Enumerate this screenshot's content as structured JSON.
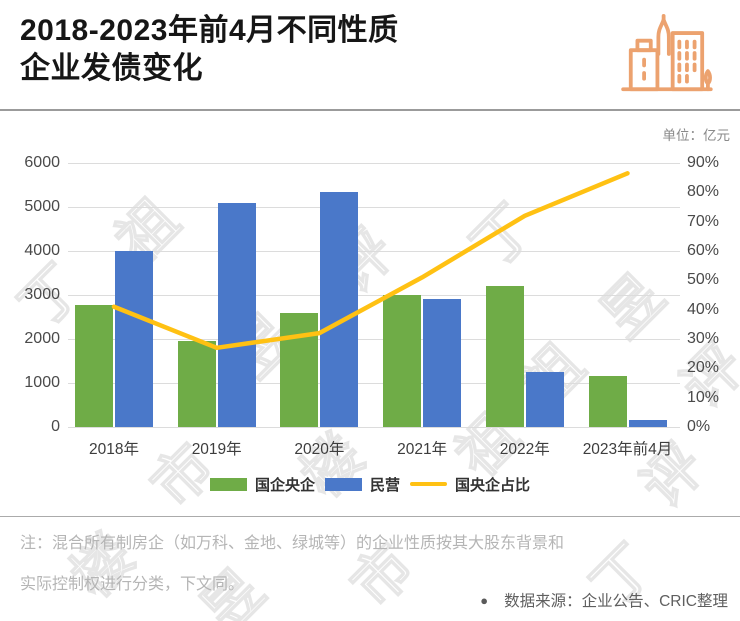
{
  "header": {
    "title_line1": "2018-2023年前4月不同性质",
    "title_line2": "企业发债变化",
    "icon_color": "#ECA26F"
  },
  "unit_label": "单位：亿元",
  "chart_data": {
    "type": "bar",
    "combo": "grouped bars + line on secondary percent axis",
    "categories": [
      "2018年",
      "2019年",
      "2020年",
      "2021年",
      "2022年",
      "2023年前4月"
    ],
    "series": [
      {
        "name": "国企央企",
        "kind": "bar",
        "axis": "left",
        "color": "#6FAC47",
        "values": [
          2780,
          1950,
          2600,
          3000,
          3200,
          1150
        ]
      },
      {
        "name": "民营",
        "kind": "bar",
        "axis": "left",
        "color": "#4A78C9",
        "values": [
          4000,
          5100,
          5330,
          2900,
          1250,
          150
        ]
      },
      {
        "name": "国央企占比",
        "kind": "line",
        "axis": "right",
        "color": "#FFC113",
        "values": [
          41,
          27,
          32,
          51,
          72,
          86.5
        ]
      }
    ],
    "left_axis": {
      "min": 0,
      "max": 6000,
      "step": 1000,
      "ticks": [
        "0",
        "1000",
        "2000",
        "3000",
        "4000",
        "5000",
        "6000"
      ]
    },
    "right_axis": {
      "min": 0,
      "max": 90,
      "step": 10,
      "ticks": [
        "0%",
        "10%",
        "20%",
        "30%",
        "40%",
        "50%",
        "60%",
        "70%",
        "80%",
        "90%"
      ]
    },
    "grid": true,
    "legend_position": "bottom"
  },
  "footnote": {
    "line1": "注：混合所有制房企（如万科、金地、绿城等）的企业性质按其大股东背景和",
    "line2": "实际控制权进行分类，下文同。"
  },
  "source": {
    "bullet": "●",
    "text": "数据来源：企业公告、CRIC整理"
  },
  "watermark": "丁祖昱评楼市"
}
